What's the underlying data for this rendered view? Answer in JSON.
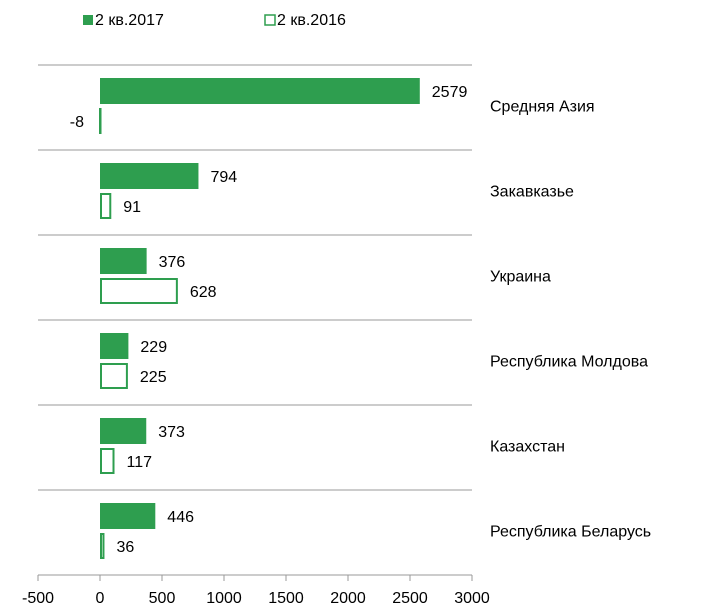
{
  "chart_data": {
    "type": "bar",
    "orientation": "horizontal",
    "categories": [
      "Средняя Азия",
      "Закавказье",
      "Украина",
      "Республика Молдова",
      "Казахстан",
      "Республика Беларусь"
    ],
    "series": [
      {
        "name": "2 кв.2017",
        "color": "#2e9e4f",
        "fill": "solid",
        "values": [
          2579,
          794,
          376,
          229,
          373,
          446
        ]
      },
      {
        "name": "2 кв.2016",
        "color": "#2e9e4f",
        "fill": "outline",
        "values": [
          -8,
          91,
          628,
          225,
          117,
          36
        ]
      }
    ],
    "xlim": [
      -500,
      3000
    ],
    "xticks": [
      -500,
      0,
      500,
      1000,
      1500,
      2000,
      2500,
      3000
    ],
    "legend": "top"
  }
}
